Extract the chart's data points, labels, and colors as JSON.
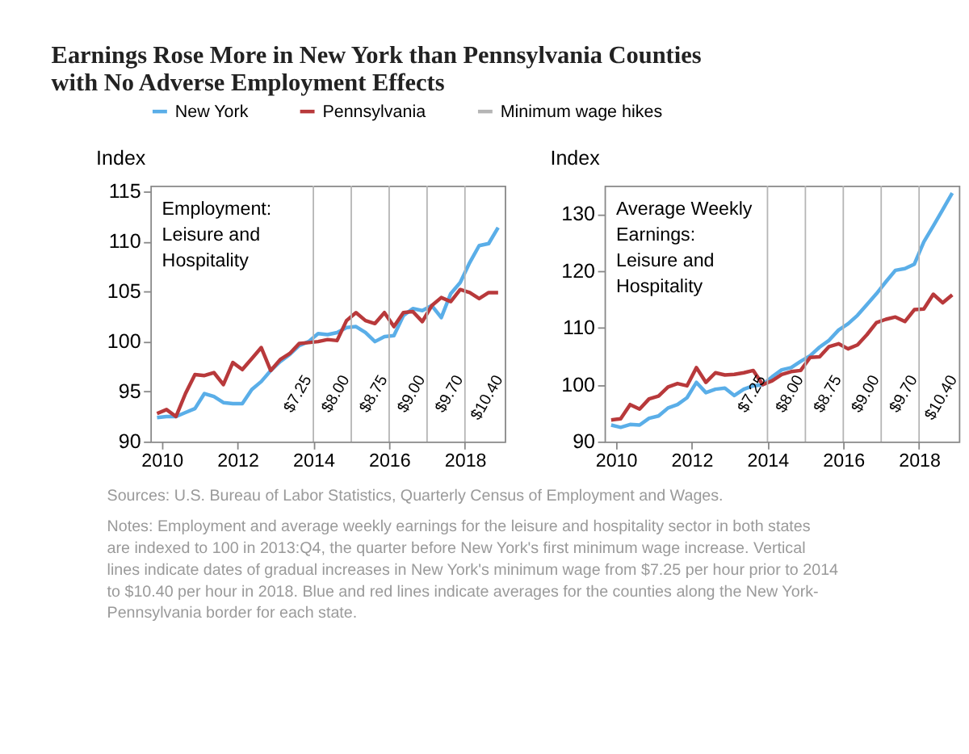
{
  "chart_data": [
    {
      "type": "line",
      "title": "Earnings Rose More in New York than Pennsylvania Counties with No Adverse Employment Effects",
      "subtitle": "Employment:\nLeisure and\nHospitality",
      "ylabel": "Index",
      "legend": "top",
      "grid": false,
      "marker": "none",
      "line_style": "solid",
      "x": [
        2009.875,
        2010.125,
        2010.375,
        2010.625,
        2010.875,
        2011.125,
        2011.375,
        2011.625,
        2011.875,
        2012.125,
        2012.375,
        2012.625,
        2012.875,
        2013.125,
        2013.375,
        2013.625,
        2013.875,
        2014.125,
        2014.375,
        2014.625,
        2014.875,
        2015.125,
        2015.375,
        2015.625,
        2015.875,
        2016.125,
        2016.375,
        2016.625,
        2016.875,
        2017.125,
        2017.375,
        2017.625,
        2017.875,
        2018.125,
        2018.375,
        2018.625,
        2018.875
      ],
      "xlim": [
        2009.7,
        2019.05
      ],
      "xticks": [
        2010,
        2012,
        2014,
        2016,
        2018
      ],
      "ylim": [
        90,
        115.6
      ],
      "yticks": [
        90,
        95,
        100,
        105,
        110,
        115
      ],
      "series": [
        {
          "name": "New York",
          "color": "#5aaee8",
          "values": [
            92.4,
            92.5,
            92.5,
            92.9,
            93.3,
            94.8,
            94.5,
            93.9,
            93.8,
            93.8,
            95.2,
            96.0,
            97.1,
            98.0,
            98.7,
            99.6,
            100.0,
            100.8,
            100.7,
            100.9,
            101.4,
            101.5,
            100.9,
            100.0,
            100.5,
            100.6,
            102.6,
            103.3,
            103.1,
            103.6,
            102.4,
            104.8,
            105.9,
            107.9,
            109.6,
            109.8,
            111.4
          ]
        },
        {
          "name": "Pennsylvania",
          "color": "#b8393b",
          "values": [
            92.8,
            93.2,
            92.5,
            94.8,
            96.7,
            96.6,
            96.9,
            95.7,
            97.9,
            97.2,
            98.3,
            99.4,
            97.1,
            98.2,
            98.8,
            99.8,
            99.9,
            100.0,
            100.2,
            100.1,
            102.1,
            102.9,
            102.1,
            101.8,
            102.9,
            101.5,
            102.9,
            103.0,
            102.0,
            103.6,
            104.4,
            104.0,
            105.2,
            104.9,
            104.3,
            104.9,
            104.9
          ]
        }
      ],
      "ref_lines": [
        {
          "axis": "x",
          "value": 2014,
          "label": "Minimum wage hikes",
          "color": "#b5b5b5"
        },
        {
          "axis": "x",
          "value": 2015,
          "color": "#b5b5b5"
        },
        {
          "axis": "x",
          "value": 2016,
          "color": "#b5b5b5"
        },
        {
          "axis": "x",
          "value": 2017,
          "color": "#b5b5b5"
        },
        {
          "axis": "x",
          "value": 2018,
          "color": "#b5b5b5"
        }
      ],
      "annotations": [
        "$7.25",
        "$8.00",
        "$8.75",
        "$9.00",
        "$9.70",
        "$10.40",
        "Sources: U.S. Bureau of Labor Statistics, Quarterly Census of Employment and Wages.",
        "Notes: Employment and average weekly earnings for the leisure and hospitality sector in both states are indexed to 100 in 2013:Q4, the quarter before New York's first minimum wage increase. Vertical lines indicate dates of gradual increases in New York's minimum wage from $7.25 per hour prior to 2014 to $10.40 per hour in 2018. Blue and red lines indicate averages for the counties along the New York-Pennsylvania border for each state."
      ]
    },
    {
      "type": "line",
      "subtitle": "Average Weekly\nEarnings:\nLeisure and\nHospitality",
      "ylabel": "Index",
      "legend": "top",
      "grid": false,
      "marker": "none",
      "line_style": "solid",
      "x": [
        2009.875,
        2010.125,
        2010.375,
        2010.625,
        2010.875,
        2011.125,
        2011.375,
        2011.625,
        2011.875,
        2012.125,
        2012.375,
        2012.625,
        2012.875,
        2013.125,
        2013.375,
        2013.625,
        2013.875,
        2014.125,
        2014.375,
        2014.625,
        2014.875,
        2015.125,
        2015.375,
        2015.625,
        2015.875,
        2016.125,
        2016.375,
        2016.625,
        2016.875,
        2017.125,
        2017.375,
        2017.625,
        2017.875,
        2018.125,
        2018.375,
        2018.625,
        2018.875
      ],
      "xlim": [
        2009.7,
        2019.05
      ],
      "xticks": [
        2010,
        2012,
        2014,
        2016,
        2018
      ],
      "ylim": [
        90,
        135
      ],
      "yticks": [
        90,
        100,
        110,
        120,
        130
      ],
      "series": [
        {
          "name": "New York",
          "color": "#5aaee8",
          "values": [
            92.9,
            92.5,
            93.0,
            92.9,
            94.1,
            94.5,
            95.9,
            96.5,
            97.7,
            100.4,
            98.6,
            99.2,
            99.4,
            98.1,
            99.2,
            99.8,
            100.0,
            101.4,
            102.6,
            103.0,
            104.1,
            105.1,
            106.6,
            107.8,
            109.6,
            110.7,
            112.2,
            114.1,
            116.0,
            118.1,
            120.1,
            120.4,
            121.2,
            125.1,
            127.9,
            130.8,
            133.7
          ]
        },
        {
          "name": "Pennsylvania",
          "color": "#b8393b",
          "values": [
            93.8,
            94.0,
            96.5,
            95.7,
            97.5,
            98.0,
            99.6,
            100.2,
            99.8,
            103.0,
            100.4,
            102.1,
            101.7,
            101.8,
            102.1,
            102.5,
            100.0,
            100.7,
            101.8,
            102.3,
            102.5,
            104.8,
            104.9,
            106.7,
            107.2,
            106.3,
            107.0,
            108.8,
            110.9,
            111.5,
            111.9,
            111.1,
            113.2,
            113.3,
            115.9,
            114.4,
            115.8
          ]
        }
      ],
      "ref_lines": [
        {
          "axis": "x",
          "value": 2014,
          "color": "#b5b5b5"
        },
        {
          "axis": "x",
          "value": 2015,
          "color": "#b5b5b5"
        },
        {
          "axis": "x",
          "value": 2016,
          "color": "#b5b5b5"
        },
        {
          "axis": "x",
          "value": 2017,
          "color": "#b5b5b5"
        },
        {
          "axis": "x",
          "value": 2018,
          "color": "#b5b5b5"
        }
      ],
      "annotations": [
        "$7.25",
        "$8.00",
        "$8.75",
        "$9.00",
        "$9.70",
        "$10.40"
      ]
    }
  ]
}
